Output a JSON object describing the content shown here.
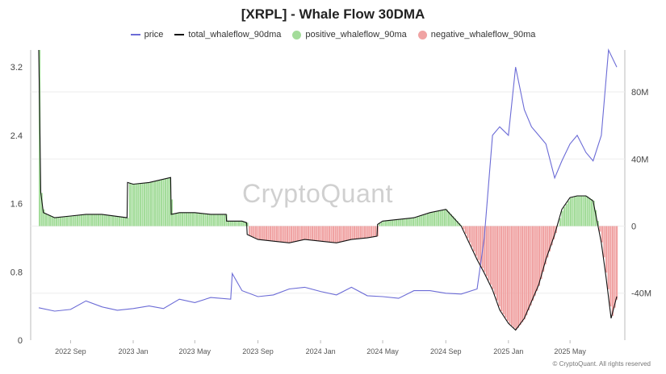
{
  "title": "[XRPL] - Whale Flow 30DMA",
  "legend": [
    {
      "label": "price",
      "kind": "line",
      "color": "#6b6bd6"
    },
    {
      "label": "total_whaleflow_90dma",
      "kind": "line",
      "color": "#111111"
    },
    {
      "label": "positive_whaleflow_90ma",
      "kind": "dot",
      "color": "#a3dc9a"
    },
    {
      "label": "negative_whaleflow_90ma",
      "kind": "dot",
      "color": "#f0a3a3"
    }
  ],
  "watermark": "CryptoQuant",
  "copyright": "© CryptoQuant. All rights reserved",
  "chart_data": {
    "type": "line",
    "title": "[XRPL] - Whale Flow 30DMA",
    "x_ticks": [
      "2022 Sep",
      "2023 Jan",
      "2023 May",
      "2023 Sep",
      "2024 Jan",
      "2024 May",
      "2024 Sep",
      "2025 Jan",
      "2025 May"
    ],
    "y_left": {
      "ticks": [
        "0",
        "0.8",
        "1.6",
        "2.4",
        "3.2"
      ],
      "range": [
        0,
        3.4
      ]
    },
    "y_right": {
      "ticks": [
        "80M",
        "40M",
        "0",
        "-40M"
      ],
      "range": [
        -68000000,
        105000000
      ]
    },
    "grid": false,
    "legend_position": "top-center",
    "series": [
      {
        "name": "price",
        "axis": "left",
        "color": "#6b6bd6",
        "x": [
          "2022-07",
          "2022-08",
          "2022-09",
          "2022-10",
          "2022-11",
          "2022-12",
          "2023-01",
          "2023-02",
          "2023-03",
          "2023-04",
          "2023-05",
          "2023-06",
          "2023-07-10",
          "2023-07-13",
          "2023-08",
          "2023-09",
          "2023-10",
          "2023-11",
          "2023-12",
          "2024-01",
          "2024-02",
          "2024-03",
          "2024-04",
          "2024-05",
          "2024-06",
          "2024-07",
          "2024-08",
          "2024-09",
          "2024-10",
          "2024-11-01",
          "2024-11-15",
          "2024-12-01",
          "2024-12-15",
          "2025-01-01",
          "2025-01-15",
          "2025-02-01",
          "2025-02-15",
          "2025-03-01",
          "2025-03-15",
          "2025-04-01",
          "2025-04-15",
          "2025-05-01",
          "2025-05-15",
          "2025-06-01",
          "2025-06-15",
          "2025-07-01",
          "2025-07-15",
          "2025-07-31"
        ],
        "y": [
          0.38,
          0.34,
          0.36,
          0.46,
          0.39,
          0.35,
          0.37,
          0.4,
          0.37,
          0.48,
          0.44,
          0.5,
          0.48,
          0.78,
          0.58,
          0.51,
          0.53,
          0.6,
          0.62,
          0.57,
          0.53,
          0.62,
          0.52,
          0.51,
          0.49,
          0.58,
          0.58,
          0.55,
          0.54,
          0.6,
          1.2,
          2.4,
          2.5,
          2.4,
          3.2,
          2.7,
          2.5,
          2.4,
          2.3,
          1.9,
          2.1,
          2.3,
          2.4,
          2.2,
          2.1,
          2.4,
          3.4,
          3.2
        ]
      },
      {
        "name": "total_whaleflow_90dma",
        "axis": "right",
        "color": "#111111",
        "x": [
          "2022-07-01",
          "2022-07-05",
          "2022-07-10",
          "2022-08",
          "2022-09",
          "2022-10",
          "2022-11",
          "2022-12-20",
          "2022-12-21",
          "2023-01",
          "2023-02",
          "2023-03-15",
          "2023-03-16",
          "2023-04",
          "2023-05",
          "2023-06",
          "2023-07-01",
          "2023-07-02",
          "2023-08",
          "2023-08-10",
          "2023-08-11",
          "2023-09",
          "2023-10",
          "2023-11",
          "2023-12",
          "2024-01",
          "2024-02",
          "2024-03",
          "2024-04",
          "2024-04-20",
          "2024-04-21",
          "2024-05",
          "2024-06",
          "2024-07",
          "2024-08",
          "2024-09",
          "2024-10",
          "2024-11",
          "2024-11-15",
          "2024-12-01",
          "2024-12-15",
          "2025-01-01",
          "2025-01-15",
          "2025-02-01",
          "2025-02-15",
          "2025-03-01",
          "2025-03-15",
          "2025-04-01",
          "2025-04-15",
          "2025-05-01",
          "2025-05-15",
          "2025-06-01",
          "2025-06-15",
          "2025-07-01",
          "2025-07-10",
          "2025-07-20",
          "2025-07-31"
        ],
        "y": [
          105000000,
          20000000,
          8000000,
          5000000,
          6000000,
          7000000,
          7000000,
          5000000,
          26000000,
          25000000,
          26000000,
          29000000,
          7000000,
          8000000,
          8000000,
          7000000,
          7000000,
          3000000,
          3000000,
          2000000,
          -5000000,
          -8000000,
          -9000000,
          -10000000,
          -8000000,
          -9000000,
          -10000000,
          -8000000,
          -7000000,
          -6000000,
          1000000,
          3000000,
          4000000,
          5000000,
          8000000,
          10000000,
          0,
          -20000000,
          -28000000,
          -38000000,
          -50000000,
          -58000000,
          -62000000,
          -55000000,
          -45000000,
          -35000000,
          -20000000,
          -5000000,
          10000000,
          17000000,
          18000000,
          18000000,
          15000000,
          -10000000,
          -30000000,
          -55000000,
          -42000000
        ]
      }
    ]
  }
}
